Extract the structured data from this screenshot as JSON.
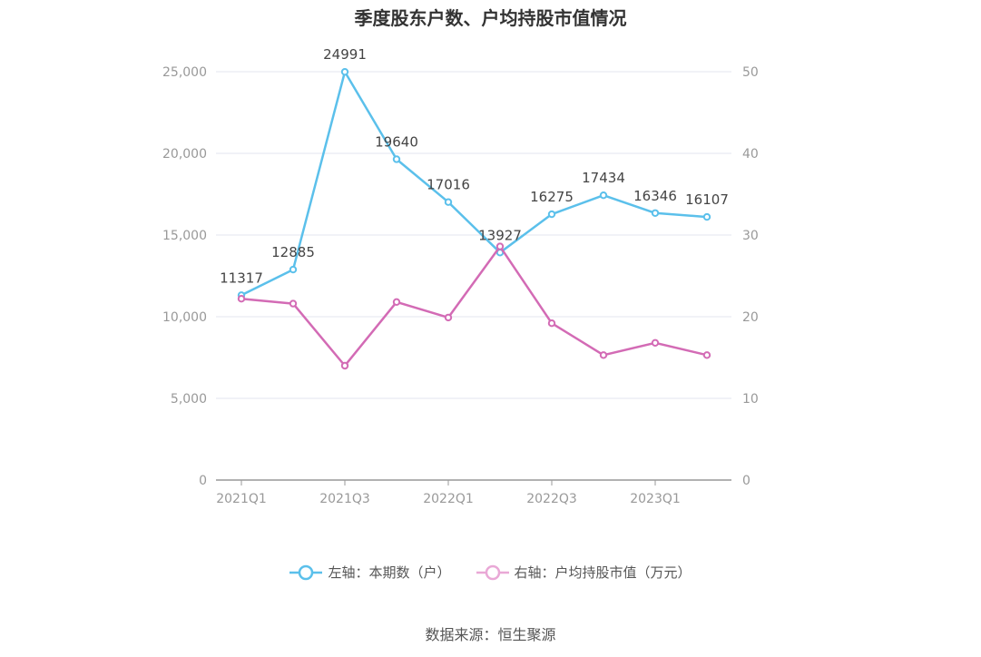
{
  "chart_data": {
    "type": "line",
    "title": "季度股东户数、户均持股市值情况",
    "categories": [
      "2021Q1",
      "2021Q2",
      "2021Q3",
      "2021Q4",
      "2022Q1",
      "2022Q2",
      "2022Q3",
      "2022Q4",
      "2023Q1",
      "2023Q2"
    ],
    "x_tick_labels": [
      "2021Q1",
      "2021Q3",
      "2022Q1",
      "2022Q3",
      "2023Q1"
    ],
    "series": [
      {
        "name": "左轴：本期数（户）",
        "axis": "left",
        "color": "#5bc0eb",
        "values": [
          11317,
          12885,
          24991,
          19640,
          17016,
          13927,
          16275,
          17434,
          16346,
          16107
        ],
        "labels": [
          "11317",
          "12885",
          "24991",
          "19640",
          "17016",
          "13927",
          "16275",
          "17434",
          "16346",
          "16107"
        ]
      },
      {
        "name": "右轴：户均持股市值（万元）",
        "axis": "right",
        "color": "#d36bb5",
        "values": [
          22.2,
          21.6,
          14.0,
          21.8,
          19.9,
          28.6,
          19.2,
          15.3,
          16.8,
          15.3
        ]
      }
    ],
    "y_left": {
      "min": 0,
      "max": 25000,
      "ticks": [
        0,
        5000,
        10000,
        15000,
        20000,
        25000
      ],
      "tick_labels": [
        "0",
        "5,000",
        "10,000",
        "15,000",
        "20,000",
        "25,000"
      ]
    },
    "y_right": {
      "min": 0,
      "max": 50,
      "ticks": [
        0,
        10,
        20,
        30,
        40,
        50
      ],
      "tick_labels": [
        "0",
        "10",
        "20",
        "30",
        "40",
        "50"
      ]
    },
    "grid": true,
    "legend_position": "bottom"
  },
  "source": "数据来源：恒生聚源"
}
